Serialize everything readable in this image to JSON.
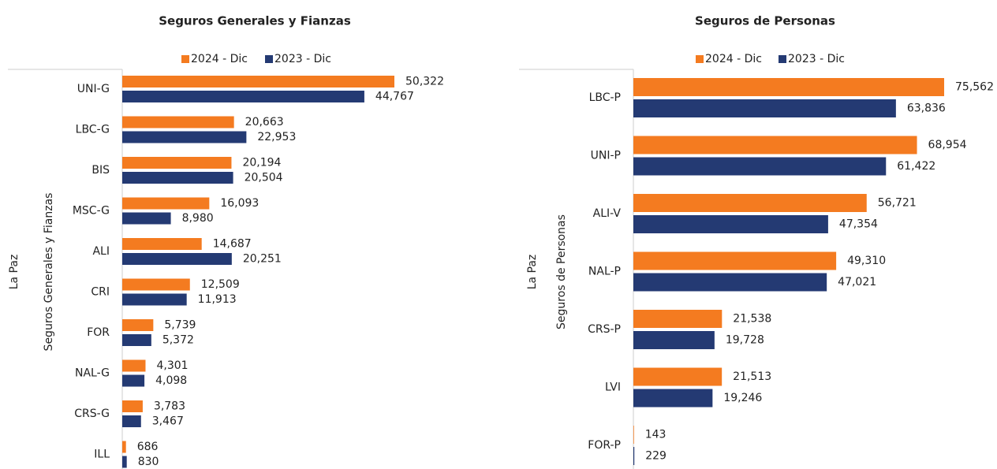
{
  "chart_data": [
    {
      "type": "hbar",
      "title": "Seguros Generales y Fianzas",
      "group_labels": [
        "La Paz",
        "Seguros Generales y Fianzas"
      ],
      "categories": [
        "UNI-G",
        "LBC-G",
        "BIS",
        "MSC-G",
        "ALI",
        "CRI",
        "FOR",
        "NAL-G",
        "CRS-G",
        "ILL"
      ],
      "series": [
        {
          "name": "2024 - Dic",
          "color": "#f47b20",
          "values": [
            50322,
            20663,
            20194,
            16093,
            14687,
            12509,
            5739,
            4301,
            3783,
            686
          ],
          "value_labels": [
            "50,322",
            "20,663",
            "20,194",
            "16,093",
            "14,687",
            "12,509",
            "5,739",
            "4,301",
            "3,783",
            "686"
          ]
        },
        {
          "name": "2023 - Dic",
          "color": "#243a73",
          "values": [
            44767,
            22953,
            20504,
            8980,
            20251,
            11913,
            5372,
            4098,
            3467,
            830
          ],
          "value_labels": [
            "44,767",
            "22,953",
            "20,504",
            "8,980",
            "20,251",
            "11,913",
            "5,372",
            "4,098",
            "3,467",
            "830"
          ]
        }
      ]
    },
    {
      "type": "hbar",
      "title": "Seguros de Personas",
      "group_labels": [
        "La Paz",
        "Seguros de Personas"
      ],
      "categories": [
        "LBC-P",
        "UNI-P",
        "ALI-V",
        "NAL-P",
        "CRS-P",
        "LVI",
        "FOR-P"
      ],
      "series": [
        {
          "name": "2024 - Dic",
          "color": "#f47b20",
          "values": [
            75562,
            68954,
            56721,
            49310,
            21538,
            21513,
            143
          ],
          "value_labels": [
            "75,562",
            "68,954",
            "56,721",
            "49,310",
            "21,538",
            "21,513",
            "143"
          ]
        },
        {
          "name": "2023 - Dic",
          "color": "#243a73",
          "values": [
            63836,
            61422,
            47354,
            47021,
            19728,
            19246,
            229
          ],
          "value_labels": [
            "63,836",
            "61,422",
            "47,354",
            "47,021",
            "19,728",
            "19,246",
            "229"
          ]
        }
      ]
    }
  ]
}
